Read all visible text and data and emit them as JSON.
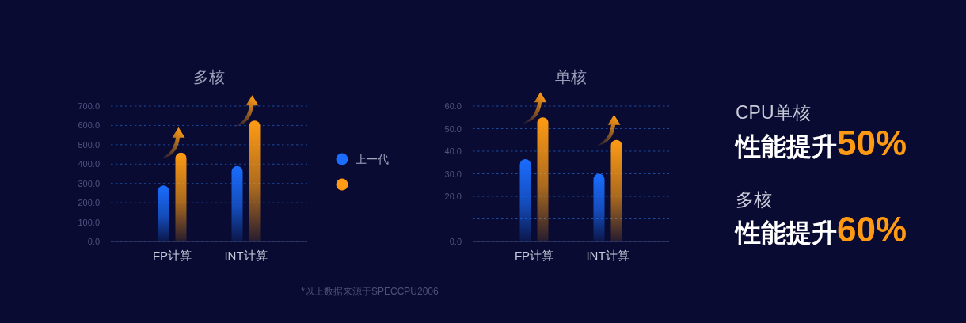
{
  "chart_data": [
    {
      "type": "bar",
      "title": "多核",
      "categories": [
        "FP计算",
        "INT计算"
      ],
      "series": [
        {
          "name": "上一代",
          "color": "#1a6dff",
          "values": [
            290,
            390
          ]
        },
        {
          "color": "#ff9b14",
          "values": [
            460,
            625
          ]
        }
      ],
      "ylim": [
        0,
        700
      ],
      "yticks": [
        {
          "value": 0,
          "label": "0.0"
        },
        {
          "value": 100,
          "label": "100.0"
        },
        {
          "value": 200,
          "label": "200.0"
        },
        {
          "value": 300,
          "label": "300.0"
        },
        {
          "value": 400,
          "label": "400.0"
        },
        {
          "value": 500,
          "label": "500.0"
        },
        {
          "value": 600,
          "label": "600.0"
        },
        {
          "value": 700,
          "label": "700.0"
        }
      ],
      "grid": "y",
      "legend": "right",
      "annotations": [
        "*以上数据来源于SPECCPU2006"
      ]
    },
    {
      "type": "bar",
      "title": "单核",
      "categories": [
        "FP计算",
        "INT计算"
      ],
      "series": [
        {
          "color": "#1a6dff",
          "values": [
            36.5,
            30
          ]
        },
        {
          "color": "#ff9b14",
          "values": [
            55,
            45
          ]
        }
      ],
      "ylim": [
        0,
        60
      ],
      "yticks": [
        {
          "value": 0,
          "label": "0.0"
        },
        {
          "value": 10,
          "label": null
        },
        {
          "value": 20,
          "label": "20.0"
        },
        {
          "value": 30,
          "label": "30.0"
        },
        {
          "value": 40,
          "label": "40.0"
        },
        {
          "value": 50,
          "label": "50.0"
        },
        {
          "value": 60,
          "label": "60.0"
        }
      ],
      "grid": "y"
    },
    {
      "type": "other",
      "annotations": [
        "CPU单核",
        "性能提升**50%**",
        "多核",
        "性能提升**60%**"
      ]
    }
  ]
}
